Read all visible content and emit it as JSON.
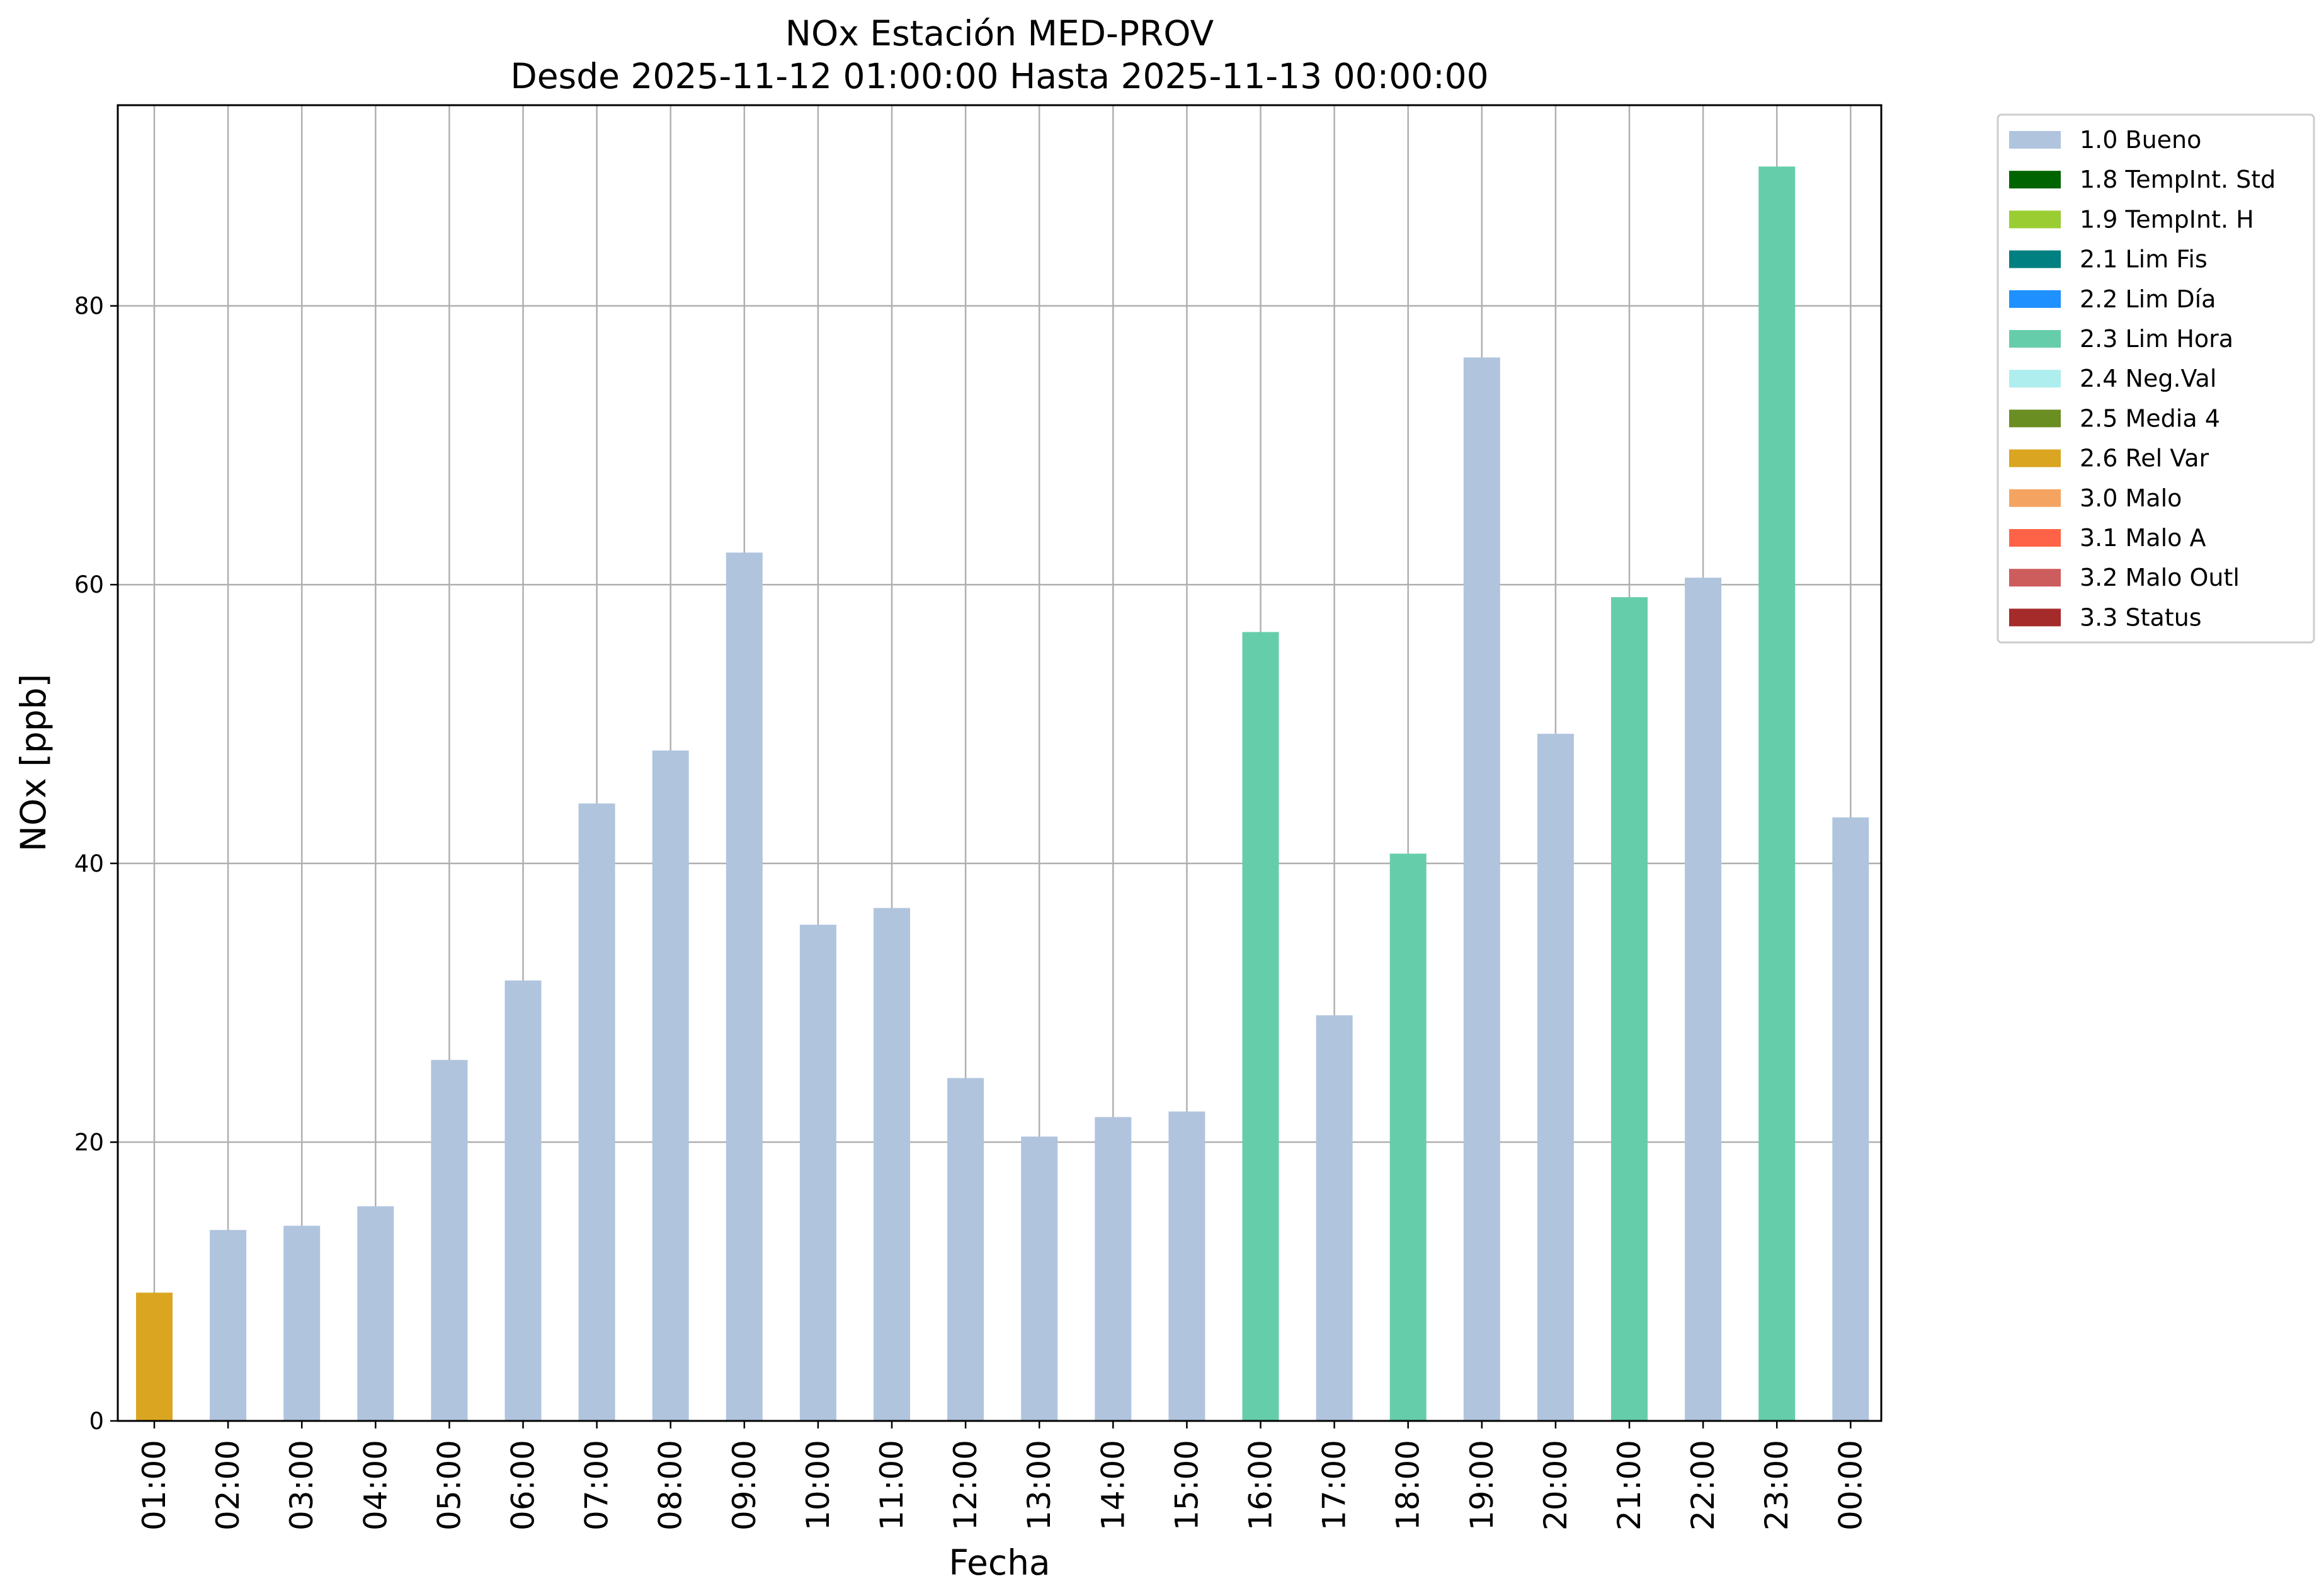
{
  "chart_data": {
    "type": "bar",
    "title": "NOx Estación MED-PROV",
    "subtitle": "Desde 2025-11-12 01:00:00 Hasta 2025-11-13 00:00:00",
    "xlabel": "Fecha",
    "ylabel": "NOx [ppb]",
    "ylim": [
      0,
      94.4
    ],
    "yticks": [
      0,
      20,
      40,
      60,
      80
    ],
    "grid": true,
    "legend_position": "outside-top-right",
    "categories": [
      "01:00",
      "02:00",
      "03:00",
      "04:00",
      "05:00",
      "06:00",
      "07:00",
      "08:00",
      "09:00",
      "10:00",
      "11:00",
      "12:00",
      "13:00",
      "14:00",
      "15:00",
      "16:00",
      "17:00",
      "18:00",
      "19:00",
      "20:00",
      "21:00",
      "22:00",
      "23:00",
      "00:00"
    ],
    "values": [
      9.2,
      13.7,
      14.0,
      15.4,
      25.9,
      31.6,
      44.3,
      48.1,
      62.3,
      35.6,
      36.8,
      24.6,
      20.4,
      21.8,
      22.2,
      56.6,
      29.1,
      40.7,
      76.3,
      49.3,
      59.1,
      60.5,
      90.0,
      43.3
    ],
    "flags": [
      "2.6 Rel Var",
      "1.0 Bueno",
      "1.0 Bueno",
      "1.0 Bueno",
      "1.0 Bueno",
      "1.0 Bueno",
      "1.0 Bueno",
      "1.0 Bueno",
      "1.0 Bueno",
      "1.0 Bueno",
      "1.0 Bueno",
      "1.0 Bueno",
      "1.0 Bueno",
      "1.0 Bueno",
      "1.0 Bueno",
      "2.3 Lim Hora",
      "1.0 Bueno",
      "2.3 Lim Hora",
      "1.0 Bueno",
      "1.0 Bueno",
      "2.3 Lim Hora",
      "1.0 Bueno",
      "2.3 Lim Hora",
      "1.0 Bueno"
    ],
    "legend": [
      {
        "label": "1.0 Bueno",
        "color": "#b0c4de"
      },
      {
        "label": "1.8 TempInt. Std",
        "color": "#006400"
      },
      {
        "label": "1.9 TempInt. H",
        "color": "#9acd32"
      },
      {
        "label": "2.1 Lim Fis",
        "color": "#008080"
      },
      {
        "label": "2.2 Lim Día",
        "color": "#1e90ff"
      },
      {
        "label": "2.3 Lim Hora",
        "color": "#66cdaa"
      },
      {
        "label": "2.4 Neg.Val",
        "color": "#afeeee"
      },
      {
        "label": "2.5 Media 4",
        "color": "#6b8e23"
      },
      {
        "label": "2.6 Rel Var",
        "color": "#daa520"
      },
      {
        "label": "3.0 Malo",
        "color": "#f4a460"
      },
      {
        "label": "3.1 Malo A",
        "color": "#ff6347"
      },
      {
        "label": "3.2 Malo Outl",
        "color": "#cd5c5c"
      },
      {
        "label": "3.3 Status",
        "color": "#a52a2a"
      }
    ]
  }
}
